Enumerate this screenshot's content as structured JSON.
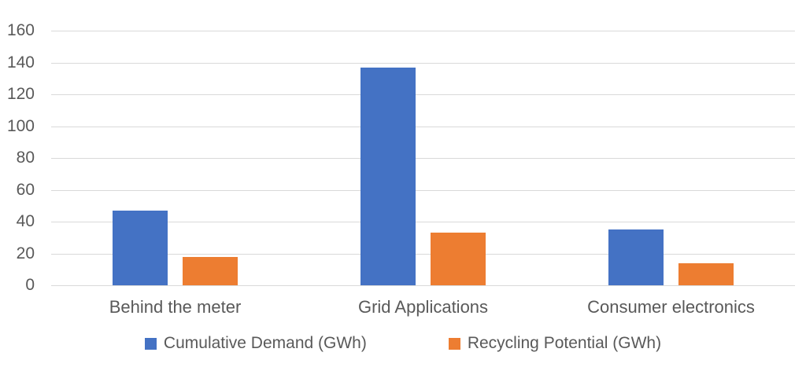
{
  "chart_data": {
    "type": "bar",
    "title": "",
    "categories": [
      "Behind the meter",
      "Grid Applications",
      "Consumer electronics"
    ],
    "series": [
      {
        "name": "Cumulative Demand (GWh)",
        "color": "#4472C4",
        "values": [
          47,
          137,
          35
        ]
      },
      {
        "name": "Recycling Potential (GWh)",
        "color": "#ED7D31",
        "values": [
          18,
          33,
          14
        ]
      }
    ],
    "xlabel": "",
    "ylabel": "",
    "ylim": [
      0,
      160
    ],
    "yticks": [
      0,
      20,
      40,
      60,
      80,
      100,
      120,
      140,
      160
    ],
    "grid": "horizontal",
    "gridline_color": "#D9D9D9",
    "text_color": "#595959",
    "background_color": "#FFFFFF",
    "legend_position": "bottom"
  }
}
